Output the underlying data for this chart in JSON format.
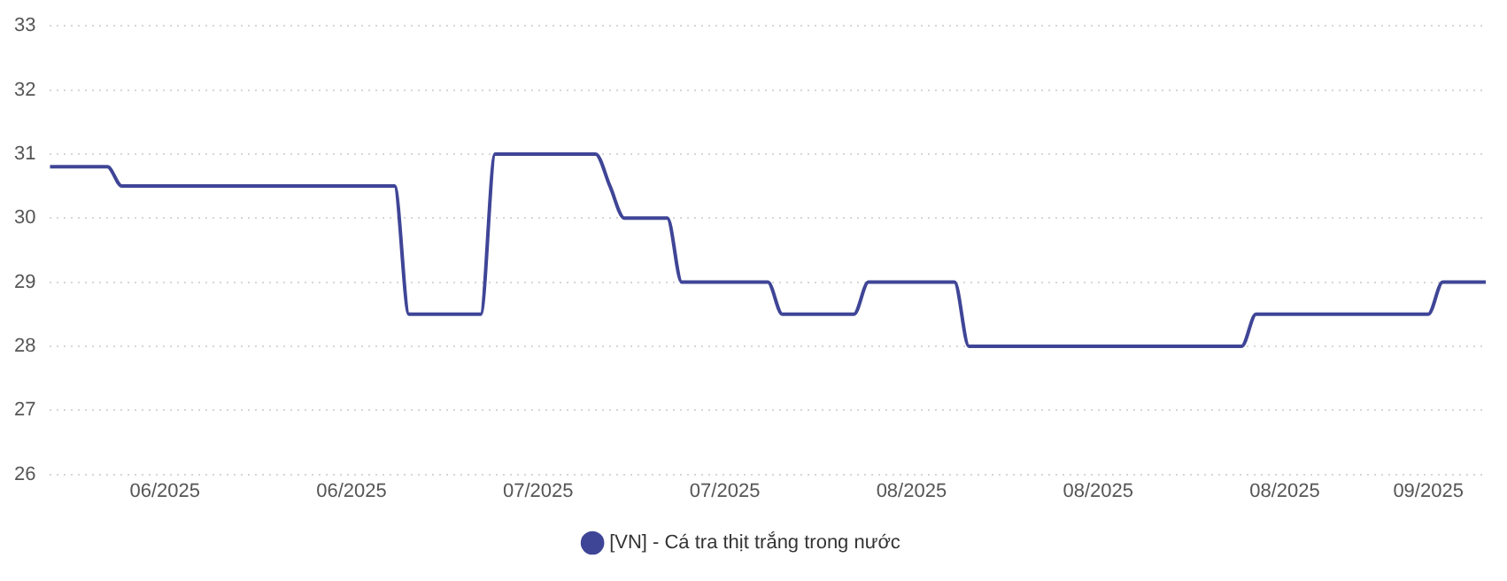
{
  "chart_data": {
    "type": "line",
    "categories": [
      null,
      null,
      null,
      null,
      null,
      null,
      null,
      null,
      "06/2025",
      null,
      null,
      null,
      null,
      null,
      null,
      null,
      null,
      null,
      null,
      null,
      null,
      "06/2025",
      null,
      null,
      null,
      null,
      null,
      null,
      null,
      null,
      null,
      null,
      null,
      null,
      "07/2025",
      null,
      null,
      null,
      null,
      null,
      null,
      null,
      null,
      null,
      null,
      null,
      null,
      "07/2025",
      null,
      null,
      null,
      null,
      null,
      null,
      null,
      null,
      null,
      null,
      null,
      null,
      "08/2025",
      null,
      null,
      null,
      null,
      null,
      null,
      null,
      null,
      null,
      null,
      null,
      null,
      "08/2025",
      null,
      null,
      null,
      null,
      null,
      null,
      null,
      null,
      null,
      null,
      null,
      null,
      "08/2025",
      null,
      null,
      null,
      null,
      null,
      null,
      null,
      null,
      null,
      "09/2025",
      null,
      null,
      null,
      null
    ],
    "series": [
      {
        "name": "[VN] - Cá tra thịt trắng trong nước",
        "color": "#3f4596",
        "values": [
          30.8,
          30.8,
          30.8,
          30.8,
          30.8,
          30.5,
          30.5,
          30.5,
          30.5,
          30.5,
          30.5,
          30.5,
          30.5,
          30.5,
          30.5,
          30.5,
          30.5,
          30.5,
          30.5,
          30.5,
          30.5,
          30.5,
          30.5,
          30.5,
          30.5,
          28.5,
          28.5,
          28.5,
          28.5,
          28.5,
          28.5,
          31,
          31,
          31,
          31,
          31,
          31,
          31,
          31,
          30.5,
          30,
          30,
          30,
          30,
          29,
          29,
          29,
          29,
          29,
          29,
          29,
          28.5,
          28.5,
          28.5,
          28.5,
          28.5,
          28.5,
          29,
          29,
          29,
          29,
          29,
          29,
          29,
          28,
          28,
          28,
          28,
          28,
          28,
          28,
          28,
          28,
          28,
          28,
          28,
          28,
          28,
          28,
          28,
          28,
          28,
          28,
          28,
          28.5,
          28.5,
          28.5,
          28.5,
          28.5,
          28.5,
          28.5,
          28.5,
          28.5,
          28.5,
          28.5,
          28.5,
          28.5,
          29,
          29,
          29,
          29
        ]
      }
    ],
    "ylim": [
      26,
      33
    ],
    "yticks": [
      26,
      27,
      28,
      29,
      30,
      31,
      32,
      33
    ],
    "grid": "y",
    "legend": "bottom",
    "marker": "none",
    "line_style": "solid"
  }
}
